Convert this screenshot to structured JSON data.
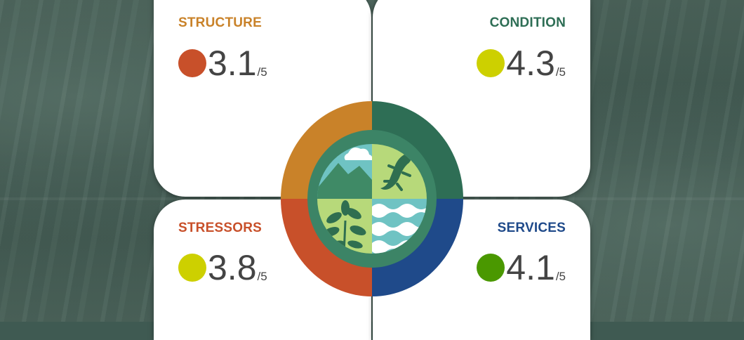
{
  "cards": {
    "structure": {
      "title": "STRUCTURE",
      "score": "3.1",
      "denominator": "/5",
      "title_color": "#c98229",
      "dot_color": "#c8502a"
    },
    "condition": {
      "title": "CONDITION",
      "score": "4.3",
      "denominator": "/5",
      "title_color": "#2e6e55",
      "dot_color": "#cdd000"
    },
    "stressors": {
      "title": "STRESSORS",
      "score": "3.8",
      "denominator": "/5",
      "title_color": "#c8502a",
      "dot_color": "#cdd000"
    },
    "services": {
      "title": "SERVICES",
      "score": "4.1",
      "denominator": "/5",
      "title_color": "#1f4a8a",
      "dot_color": "#4a9800"
    }
  },
  "emblem": {
    "ring_colors": {
      "structure": "#c98229",
      "condition": "#2e6e55",
      "stressors": "#c8502a",
      "services": "#1f4a8a"
    },
    "icons": [
      "mountain-icon",
      "salamander-icon",
      "plant-icon",
      "water-waves-icon"
    ]
  }
}
